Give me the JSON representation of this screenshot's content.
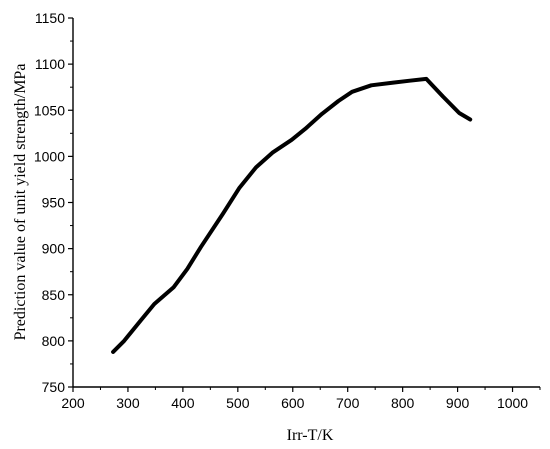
{
  "chart_data": {
    "type": "line",
    "title": "",
    "xlabel": "Irr-T/K",
    "ylabel": "Prediction value of unit yield strength/MPa",
    "xlim": [
      200,
      1050
    ],
    "ylim": [
      750,
      1150
    ],
    "x_ticks": [
      "200",
      "300",
      "400",
      "500",
      "600",
      "700",
      "800",
      "900",
      "1000"
    ],
    "y_ticks": [
      "750",
      "800",
      "850",
      "900",
      "950",
      "1000",
      "1050",
      "1100",
      "1150"
    ],
    "grid": false,
    "legend": "none",
    "series": [
      {
        "color": "#000000",
        "x": [
          273,
          293,
          323,
          348,
          383,
          408,
          433,
          473,
          503,
          533,
          563,
          598,
          623,
          653,
          683,
          708,
          743,
          783,
          813,
          843,
          873,
          903,
          923
        ],
        "y": [
          788,
          800,
          822,
          840,
          858,
          878,
          902,
          938,
          966,
          988,
          1004,
          1018,
          1030,
          1046,
          1060,
          1070,
          1077,
          1080,
          1082,
          1084,
          1065,
          1047,
          1040
        ]
      }
    ]
  }
}
